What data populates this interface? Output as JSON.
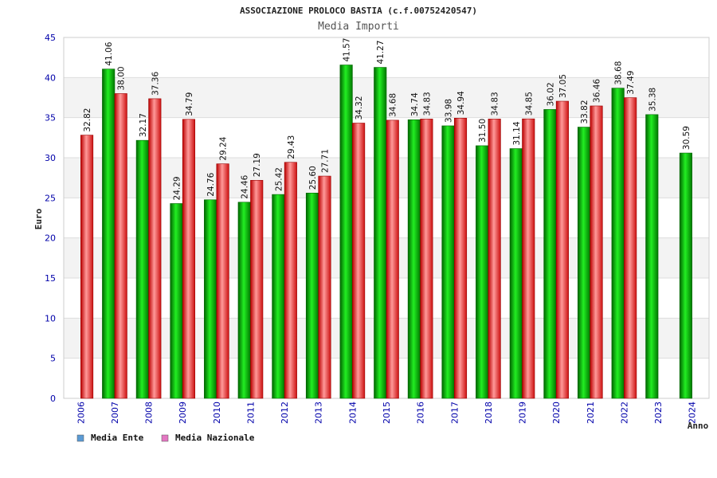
{
  "chart_data": {
    "type": "bar",
    "title": "ASSOCIAZIONE PROLOCO BASTIA (c.f.00752420547)",
    "subtitle": "Media Importi",
    "xlabel": "Anno",
    "ylabel": "Euro",
    "ylim": [
      0,
      45
    ],
    "yticks": [
      0,
      5,
      10,
      15,
      20,
      25,
      30,
      35,
      40,
      45
    ],
    "grid": true,
    "legend_position": "bottom-left",
    "categories": [
      "2006",
      "2007",
      "2008",
      "2009",
      "2010",
      "2011",
      "2012",
      "2013",
      "2014",
      "2015",
      "2016",
      "2017",
      "2018",
      "2019",
      "2020",
      "2021",
      "2022",
      "2023",
      "2024"
    ],
    "series": [
      {
        "name": "Media Ente",
        "color": "#00aa00",
        "legend_color": "#5b9bd5",
        "values": [
          null,
          41.06,
          32.17,
          24.29,
          24.76,
          24.46,
          25.42,
          25.6,
          41.57,
          41.27,
          34.74,
          33.98,
          31.5,
          31.14,
          36.02,
          33.82,
          38.68,
          35.38,
          30.59
        ],
        "labels": [
          "",
          "41.06",
          "32.17",
          "24.29",
          "24.76",
          "24.46",
          "25.42",
          "25.60",
          "41.57",
          "41.27",
          "34.74",
          "33.98",
          "31.50",
          "31.14",
          "36.02",
          "33.82",
          "38.68",
          "35.38",
          "30.59"
        ]
      },
      {
        "name": "Media Nazionale",
        "color": "#dd1111",
        "legend_color": "#e377c2",
        "values": [
          32.82,
          38.0,
          37.36,
          34.79,
          29.24,
          27.19,
          29.43,
          27.71,
          34.32,
          34.68,
          34.83,
          34.94,
          34.83,
          34.85,
          37.05,
          36.46,
          37.49,
          null,
          null
        ],
        "labels": [
          "32.82",
          "38.00",
          "37.36",
          "34.79",
          "29.24",
          "27.19",
          "29.43",
          "27.71",
          "34.32",
          "34.68",
          "34.83",
          "34.94",
          "34.83",
          "34.85",
          "37.05",
          "36.46",
          "37.49",
          "",
          ""
        ]
      }
    ]
  },
  "colors": {
    "axis_text": "#0000aa",
    "title_text": "#222222",
    "band": "#f3f3f3",
    "grid": "#dddddd",
    "frame": "#cccccc"
  }
}
